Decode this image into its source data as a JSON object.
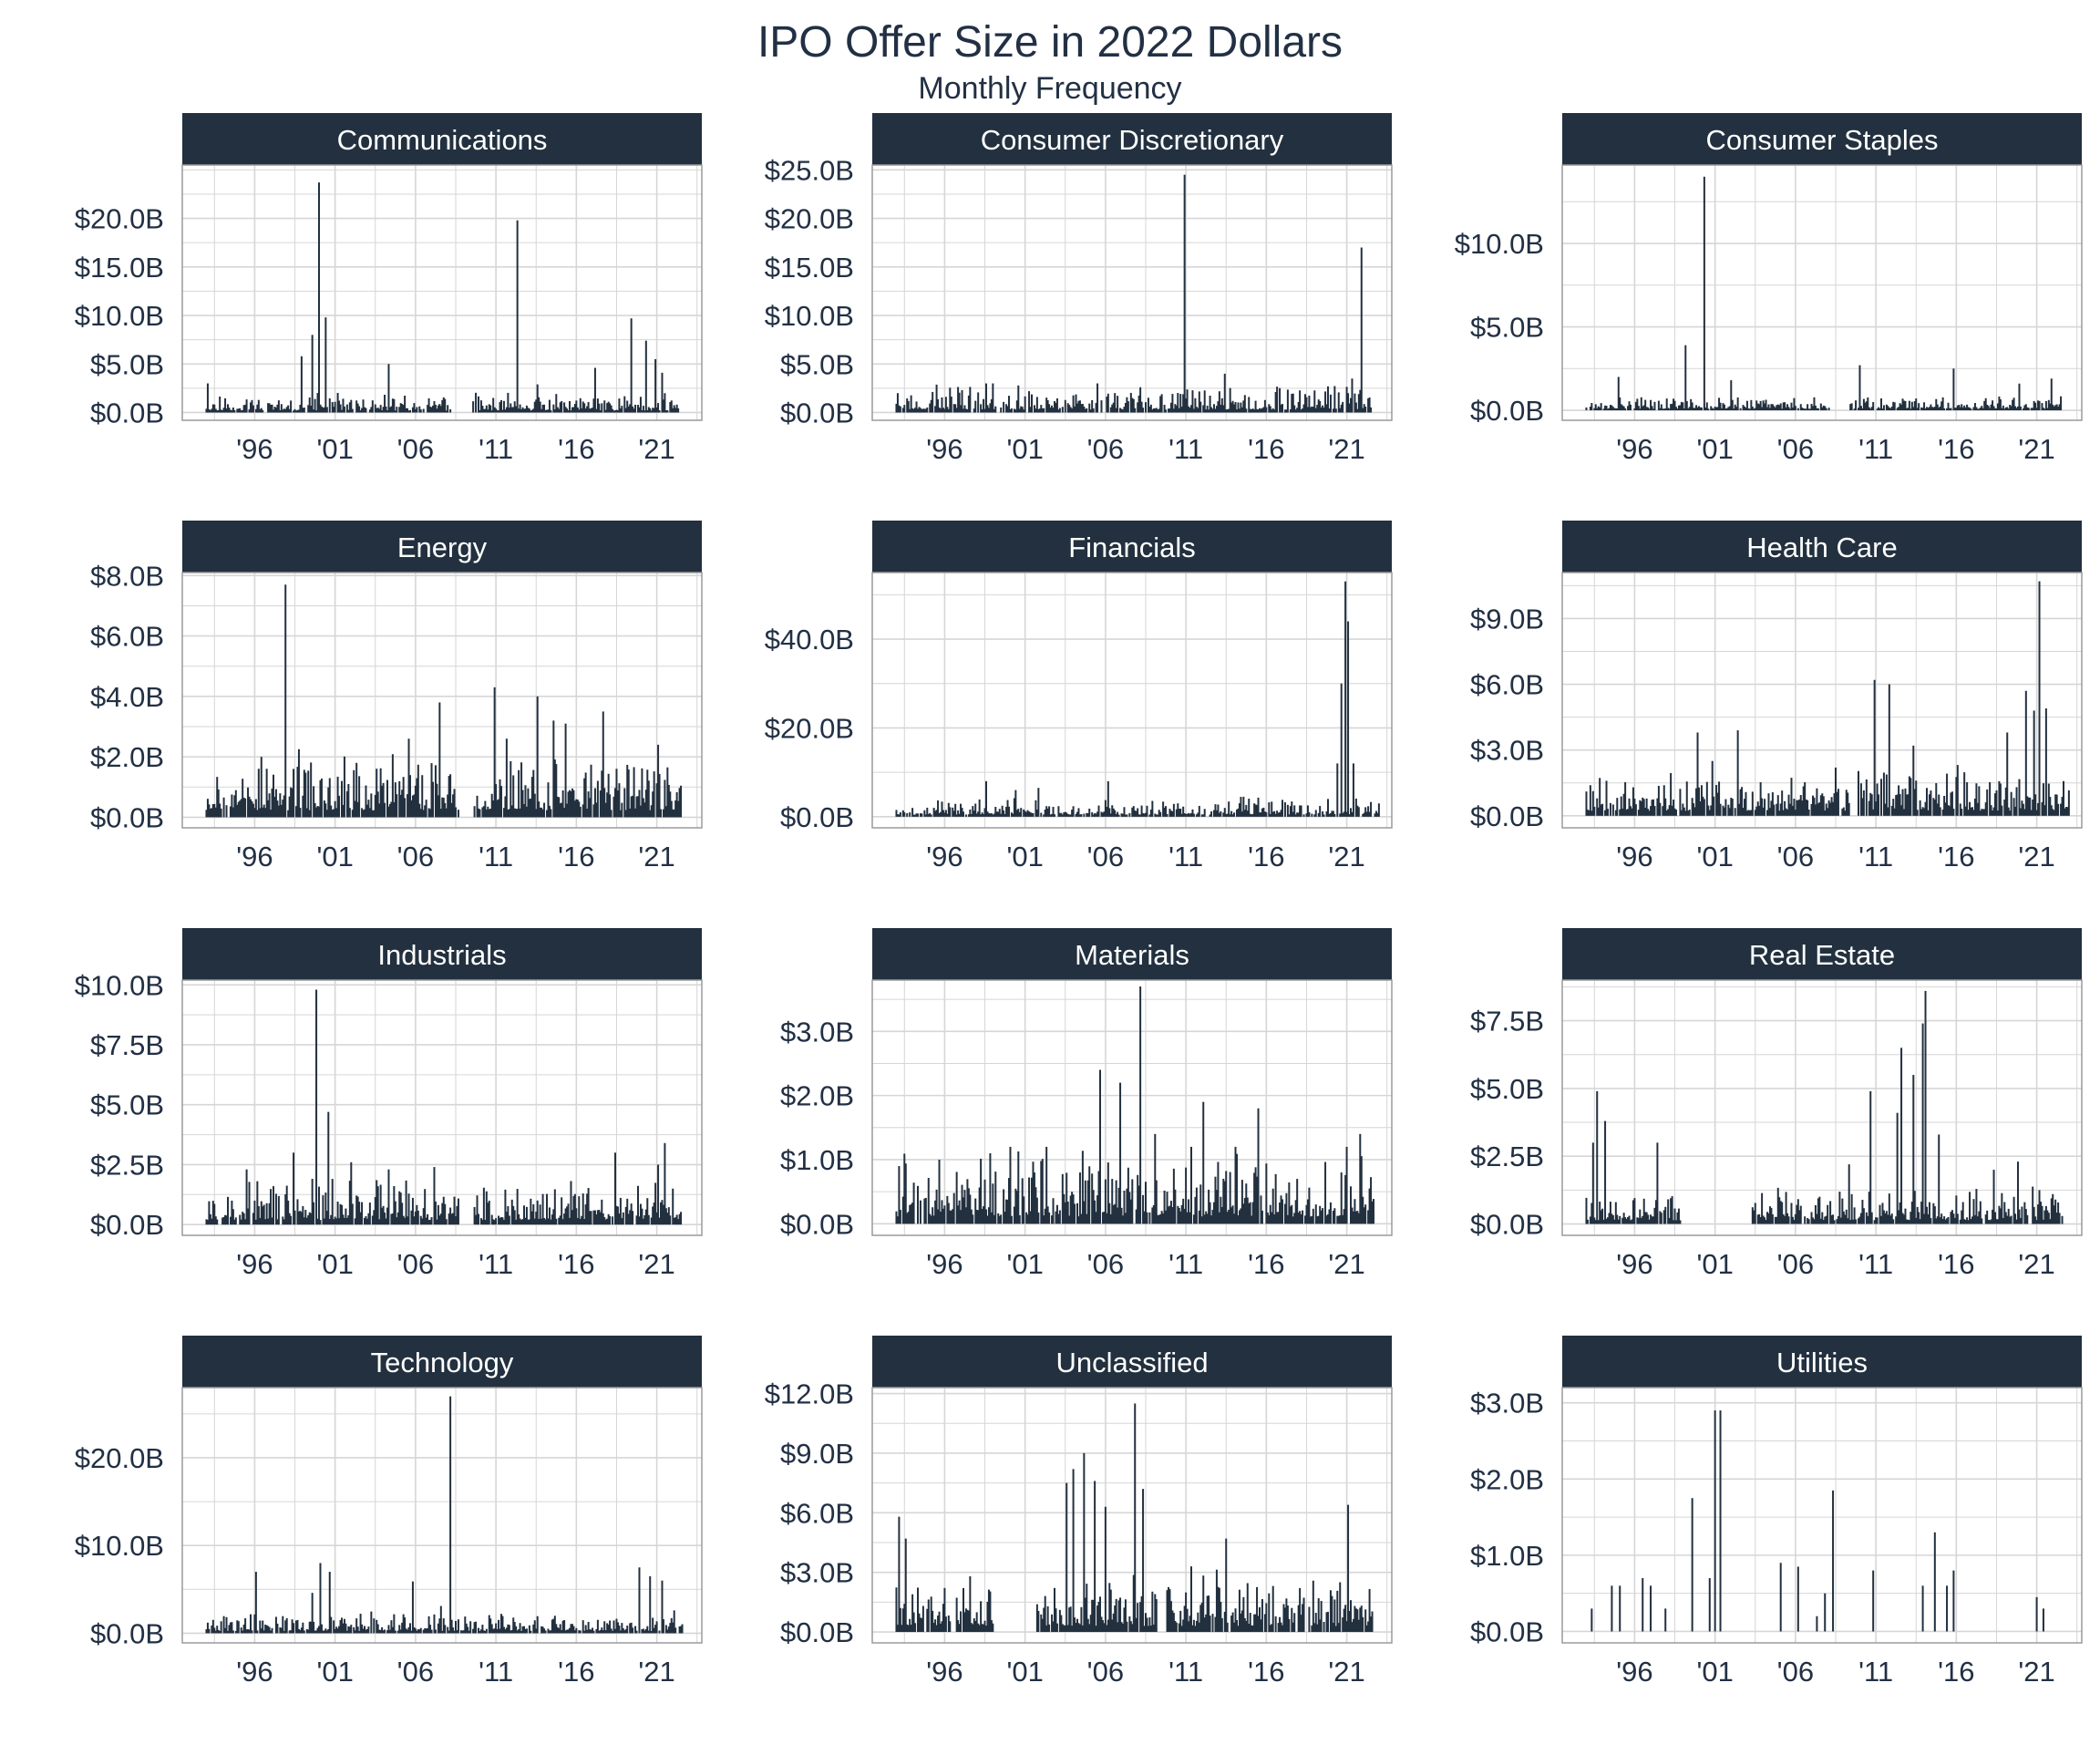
{
  "title": "IPO Offer Size in 2022 Dollars",
  "subtitle": "Monthly Frequency",
  "colors": {
    "bar": "#22303f",
    "strip": "#22303f",
    "strip_text": "#ffffff",
    "grid": "#d6d6d6",
    "text": "#223044"
  },
  "x_ticks": [
    "'96",
    "'01",
    "'06",
    "'11",
    "'16",
    "'21"
  ],
  "chart_data": [
    {
      "type": "bar",
      "facet": "Communications",
      "xlim": [
        1991.5,
        2023.8
      ],
      "ylim": [
        -0.8,
        25.5
      ],
      "y_ticks": [
        {
          "v": 0,
          "label": "$0.0B"
        },
        {
          "v": 5,
          "label": "$5.0B"
        },
        {
          "v": 10,
          "label": "$10.0B"
        },
        {
          "v": 15,
          "label": "$15.0B"
        },
        {
          "v": 20,
          "label": "$20.0B"
        }
      ],
      "peaks": [
        [
          1993.1,
          3.0
        ],
        [
          1998.9,
          5.8
        ],
        [
          1999.6,
          8.0
        ],
        [
          2000.0,
          23.7
        ],
        [
          2000.4,
          9.8
        ],
        [
          2004.3,
          5.0
        ],
        [
          2012.3,
          19.8
        ],
        [
          2013.6,
          2.9
        ],
        [
          2017.2,
          4.6
        ],
        [
          2019.4,
          9.7
        ],
        [
          2020.3,
          7.4
        ],
        [
          2020.9,
          5.5
        ],
        [
          2021.3,
          4.1
        ]
      ],
      "gaps": [
        [
          2008.2,
          2009.5
        ],
        [
          2022.4,
          2023.6
        ]
      ],
      "seed": 11,
      "base": 0.8
    },
    {
      "type": "bar",
      "facet": "Consumer Discretionary",
      "xlim": [
        1991.5,
        2023.8
      ],
      "ylim": [
        -0.8,
        25.5
      ],
      "y_ticks": [
        {
          "v": 0,
          "label": "$0.0B"
        },
        {
          "v": 5,
          "label": "$5.0B"
        },
        {
          "v": 10,
          "label": "$10.0B"
        },
        {
          "v": 15,
          "label": "$15.0B"
        },
        {
          "v": 20,
          "label": "$20.0B"
        },
        {
          "v": 25,
          "label": "$25.0B"
        }
      ],
      "peaks": [
        [
          1992.2,
          2.2
        ],
        [
          1999.0,
          3.0
        ],
        [
          2005.5,
          3.0
        ],
        [
          2010.9,
          24.5
        ],
        [
          2013.4,
          4.0
        ],
        [
          2021.3,
          3.5
        ],
        [
          2021.9,
          17.0
        ]
      ],
      "gaps": [
        [
          2022.5,
          2023.6
        ]
      ],
      "seed": 23,
      "base": 1.2
    },
    {
      "type": "bar",
      "facet": "Consumer Staples",
      "xlim": [
        1991.5,
        2023.8
      ],
      "ylim": [
        -0.6,
        14.7
      ],
      "y_ticks": [
        {
          "v": 0,
          "label": "$0.0B"
        },
        {
          "v": 5,
          "label": "$5.0B"
        },
        {
          "v": 10,
          "label": "$10.0B"
        }
      ],
      "peaks": [
        [
          1995.0,
          2.0
        ],
        [
          1999.2,
          3.9
        ],
        [
          2000.3,
          14.0
        ],
        [
          2002.0,
          1.8
        ],
        [
          2010.0,
          2.7
        ],
        [
          2015.8,
          2.5
        ],
        [
          2019.9,
          1.6
        ],
        [
          2021.9,
          1.9
        ]
      ],
      "gaps": [
        [
          2008.2,
          2009.3
        ],
        [
          2022.5,
          2023.6
        ]
      ],
      "seed": 37,
      "base": 0.35
    },
    {
      "type": "bar",
      "facet": "Energy",
      "xlim": [
        1991.5,
        2023.8
      ],
      "ylim": [
        -0.35,
        8.1
      ],
      "y_ticks": [
        {
          "v": 0,
          "label": "$0.0B"
        },
        {
          "v": 2,
          "label": "$2.0B"
        },
        {
          "v": 4,
          "label": "$4.0B"
        },
        {
          "v": 6,
          "label": "$6.0B"
        },
        {
          "v": 8,
          "label": "$8.0B"
        }
      ],
      "peaks": [
        [
          1996.4,
          2.0
        ],
        [
          1997.9,
          7.7
        ],
        [
          1998.4,
          1.6
        ],
        [
          2002.3,
          1.8
        ],
        [
          2005.6,
          2.6
        ],
        [
          2007.5,
          3.8
        ],
        [
          2010.9,
          4.3
        ],
        [
          2011.7,
          2.6
        ],
        [
          2013.6,
          4.0
        ],
        [
          2014.6,
          3.2
        ],
        [
          2015.3,
          3.1
        ],
        [
          2017.7,
          3.5
        ],
        [
          2021.1,
          2.4
        ]
      ],
      "gaps": [
        [
          2008.7,
          2009.6
        ],
        [
          2022.5,
          2023.3
        ]
      ],
      "seed": 53,
      "base": 0.9
    },
    {
      "type": "bar",
      "facet": "Financials",
      "xlim": [
        1991.5,
        2023.8
      ],
      "ylim": [
        -2.5,
        55.0
      ],
      "y_ticks": [
        {
          "v": 0,
          "label": "$0.0B"
        },
        {
          "v": 20,
          "label": "$20.0B"
        },
        {
          "v": 40,
          "label": "$40.0B"
        }
      ],
      "peaks": [
        [
          1992.2,
          6.0
        ],
        [
          1998.6,
          8.0
        ],
        [
          2000.4,
          6.0
        ],
        [
          2001.8,
          6.5
        ],
        [
          2006.2,
          8.0
        ],
        [
          2014.6,
          4.5
        ],
        [
          2019.8,
          4.0
        ],
        [
          2020.4,
          12.0
        ],
        [
          2020.7,
          30.0
        ],
        [
          2020.9,
          53.0
        ],
        [
          2021.1,
          44.0
        ],
        [
          2021.4,
          12.0
        ]
      ],
      "gaps": [],
      "seed": 67,
      "base": 1.8
    },
    {
      "type": "bar",
      "facet": "Health Care",
      "xlim": [
        1991.5,
        2023.8
      ],
      "ylim": [
        -0.55,
        11.1
      ],
      "y_ticks": [
        {
          "v": 0,
          "label": "$0.0B"
        },
        {
          "v": 3,
          "label": "$3.0B"
        },
        {
          "v": 6,
          "label": "$6.0B"
        },
        {
          "v": 9,
          "label": "$9.0B"
        }
      ],
      "peaks": [
        [
          1999.9,
          3.8
        ],
        [
          2000.8,
          2.5
        ],
        [
          2002.4,
          3.9
        ],
        [
          2008.5,
          2.2
        ],
        [
          2010.9,
          6.2
        ],
        [
          2011.8,
          6.0
        ],
        [
          2013.3,
          3.2
        ],
        [
          2019.2,
          3.8
        ],
        [
          2020.3,
          5.7
        ],
        [
          2020.8,
          4.8
        ],
        [
          2021.2,
          10.7
        ],
        [
          2021.6,
          4.9
        ]
      ],
      "gaps": [
        [
          2009.4,
          2009.9
        ]
      ],
      "seed": 79,
      "base": 0.9
    },
    {
      "type": "bar",
      "facet": "Industrials",
      "xlim": [
        1991.5,
        2023.8
      ],
      "ylim": [
        -0.45,
        10.2
      ],
      "y_ticks": [
        {
          "v": 0,
          "label": "$0.0B"
        },
        {
          "v": 2.5,
          "label": "$2.5B"
        },
        {
          "v": 5,
          "label": "$5.0B"
        },
        {
          "v": 7.5,
          "label": "$7.5B"
        },
        {
          "v": 10,
          "label": "$10.0B"
        }
      ],
      "peaks": [
        [
          1995.5,
          2.3
        ],
        [
          1998.4,
          3.0
        ],
        [
          1999.8,
          9.8
        ],
        [
          2000.6,
          4.7
        ],
        [
          2002.0,
          2.6
        ],
        [
          2004.3,
          2.3
        ],
        [
          2007.2,
          2.4
        ],
        [
          2018.4,
          3.0
        ],
        [
          2021.1,
          2.5
        ],
        [
          2021.5,
          3.4
        ],
        [
          2023.2,
          0.7
        ]
      ],
      "gaps": [
        [
          2008.7,
          2009.6
        ],
        [
          2022.5,
          2023.1
        ]
      ],
      "seed": 97,
      "base": 0.75
    },
    {
      "type": "bar",
      "facet": "Materials",
      "xlim": [
        1991.5,
        2023.8
      ],
      "ylim": [
        -0.18,
        3.8
      ],
      "y_ticks": [
        {
          "v": 0,
          "label": "$0.0B"
        },
        {
          "v": 1,
          "label": "$1.0B"
        },
        {
          "v": 2,
          "label": "$2.0B"
        },
        {
          "v": 3,
          "label": "$3.0B"
        }
      ],
      "peaks": [
        [
          1993.2,
          0.9
        ],
        [
          1995.7,
          1.0
        ],
        [
          1998.8,
          1.1
        ],
        [
          2000.1,
          1.2
        ],
        [
          2001.6,
          0.8
        ],
        [
          2002.3,
          1.2
        ],
        [
          2004.4,
          0.8
        ],
        [
          2005.7,
          2.4
        ],
        [
          2006.4,
          0.7
        ],
        [
          2006.9,
          2.2
        ],
        [
          2008.2,
          3.7
        ],
        [
          2009.1,
          1.4
        ],
        [
          2011.3,
          1.2
        ],
        [
          2012.1,
          1.9
        ],
        [
          2014.1,
          1.2
        ],
        [
          2015.5,
          1.8
        ],
        [
          2017.9,
          0.7
        ],
        [
          2021.0,
          1.2
        ],
        [
          2021.8,
          1.4
        ],
        [
          2022.2,
          0.3
        ]
      ],
      "gaps": [
        [
          2022.7,
          2023.6
        ]
      ],
      "seed": 109,
      "base": 0.45
    },
    {
      "type": "bar",
      "facet": "Real Estate",
      "xlim": [
        1991.5,
        2023.8
      ],
      "ylim": [
        -0.42,
        9.0
      ],
      "y_ticks": [
        {
          "v": 0,
          "label": "$0.0B"
        },
        {
          "v": 2.5,
          "label": "$2.5B"
        },
        {
          "v": 5,
          "label": "$5.0B"
        },
        {
          "v": 7.5,
          "label": "$7.5B"
        }
      ],
      "peaks": [
        [
          1993.4,
          3.0
        ],
        [
          1993.7,
          4.9
        ],
        [
          1994.2,
          3.8
        ],
        [
          1997.4,
          3.0
        ],
        [
          2009.3,
          2.2
        ],
        [
          2010.7,
          4.9
        ],
        [
          2012.3,
          4.1
        ],
        [
          2012.6,
          6.5
        ],
        [
          2013.3,
          5.5
        ],
        [
          2013.9,
          7.4
        ],
        [
          2014.1,
          8.6
        ],
        [
          2014.9,
          3.3
        ],
        [
          2018.3,
          2.0
        ],
        [
          2019.8,
          2.3
        ]
      ],
      "gaps": [
        [
          1998.9,
          2003.3
        ],
        [
          2022.6,
          2023.6
        ]
      ],
      "seed": 127,
      "base": 0.55
    },
    {
      "type": "bar",
      "facet": "Technology",
      "xlim": [
        1991.5,
        2023.8
      ],
      "ylim": [
        -1.1,
        28.0
      ],
      "y_ticks": [
        {
          "v": 0,
          "label": "$0.0B"
        },
        {
          "v": 10,
          "label": "$10.0B"
        },
        {
          "v": 20,
          "label": "$20.0B"
        }
      ],
      "peaks": [
        [
          1996.1,
          7.0
        ],
        [
          1999.6,
          4.6
        ],
        [
          2000.1,
          8.0
        ],
        [
          2000.7,
          7.0
        ],
        [
          2005.8,
          5.9
        ],
        [
          2007.6,
          3.1
        ],
        [
          2008.2,
          27.0
        ],
        [
          2019.9,
          7.5
        ],
        [
          2020.6,
          6.5
        ],
        [
          2021.3,
          6.0
        ]
      ],
      "gaps": [
        [
          2022.6,
          2023.3
        ]
      ],
      "seed": 131,
      "base": 1.0
    },
    {
      "type": "bar",
      "facet": "Unclassified",
      "xlim": [
        1991.5,
        2023.8
      ],
      "ylim": [
        -0.55,
        12.3
      ],
      "y_ticks": [
        {
          "v": 0,
          "label": "$0.0B"
        },
        {
          "v": 3,
          "label": "$3.0B"
        },
        {
          "v": 6,
          "label": "$6.0B"
        },
        {
          "v": 9,
          "label": "$9.0B"
        },
        {
          "v": 12,
          "label": "$12.0B"
        }
      ],
      "peaks": [
        [
          1992.4,
          3.7
        ],
        [
          1993.2,
          5.8
        ],
        [
          1993.6,
          4.7
        ],
        [
          1997.6,
          2.8
        ],
        [
          2003.6,
          7.5
        ],
        [
          2004.0,
          8.2
        ],
        [
          2004.7,
          9.0
        ],
        [
          2005.3,
          7.6
        ],
        [
          2006.0,
          6.3
        ],
        [
          2007.8,
          11.5
        ],
        [
          2008.3,
          7.2
        ],
        [
          2011.3,
          3.3
        ],
        [
          2013.5,
          4.7
        ],
        [
          2020.0,
          2.1
        ],
        [
          2020.6,
          2.5
        ],
        [
          2021.1,
          6.4
        ]
      ],
      "gaps": [
        [
          1999.0,
          2001.7
        ],
        [
          2009.2,
          2009.8
        ],
        [
          2022.6,
          2023.3
        ]
      ],
      "seed": 149,
      "base": 1.2
    },
    {
      "type": "bar",
      "facet": "Utilities",
      "xlim": [
        1991.5,
        2023.8
      ],
      "ylim": [
        -0.15,
        3.2
      ],
      "y_ticks": [
        {
          "v": 0,
          "label": "$0.0B"
        },
        {
          "v": 1,
          "label": "$1.0B"
        },
        {
          "v": 2,
          "label": "$2.0B"
        },
        {
          "v": 3,
          "label": "$3.0B"
        }
      ],
      "peaks": [
        [
          1993.3,
          0.3
        ],
        [
          1994.6,
          0.6
        ],
        [
          1995.1,
          0.6
        ],
        [
          1996.5,
          0.7
        ],
        [
          1997.0,
          0.6
        ],
        [
          1997.9,
          0.3
        ],
        [
          1999.6,
          1.75
        ],
        [
          2000.7,
          0.7
        ],
        [
          2001.0,
          2.9
        ],
        [
          2001.3,
          2.9
        ],
        [
          2005.1,
          0.9
        ],
        [
          2006.2,
          0.85
        ],
        [
          2007.3,
          0.2
        ],
        [
          2007.8,
          0.5
        ],
        [
          2008.3,
          1.85
        ],
        [
          2010.8,
          0.8
        ],
        [
          2013.9,
          0.6
        ],
        [
          2014.7,
          1.3
        ],
        [
          2015.4,
          0.6
        ],
        [
          2015.8,
          0.8
        ],
        [
          2021.0,
          0.45
        ],
        [
          2021.4,
          0.3
        ]
      ],
      "gaps": [],
      "seed": 163,
      "base": 0.0,
      "sparse": true
    }
  ]
}
